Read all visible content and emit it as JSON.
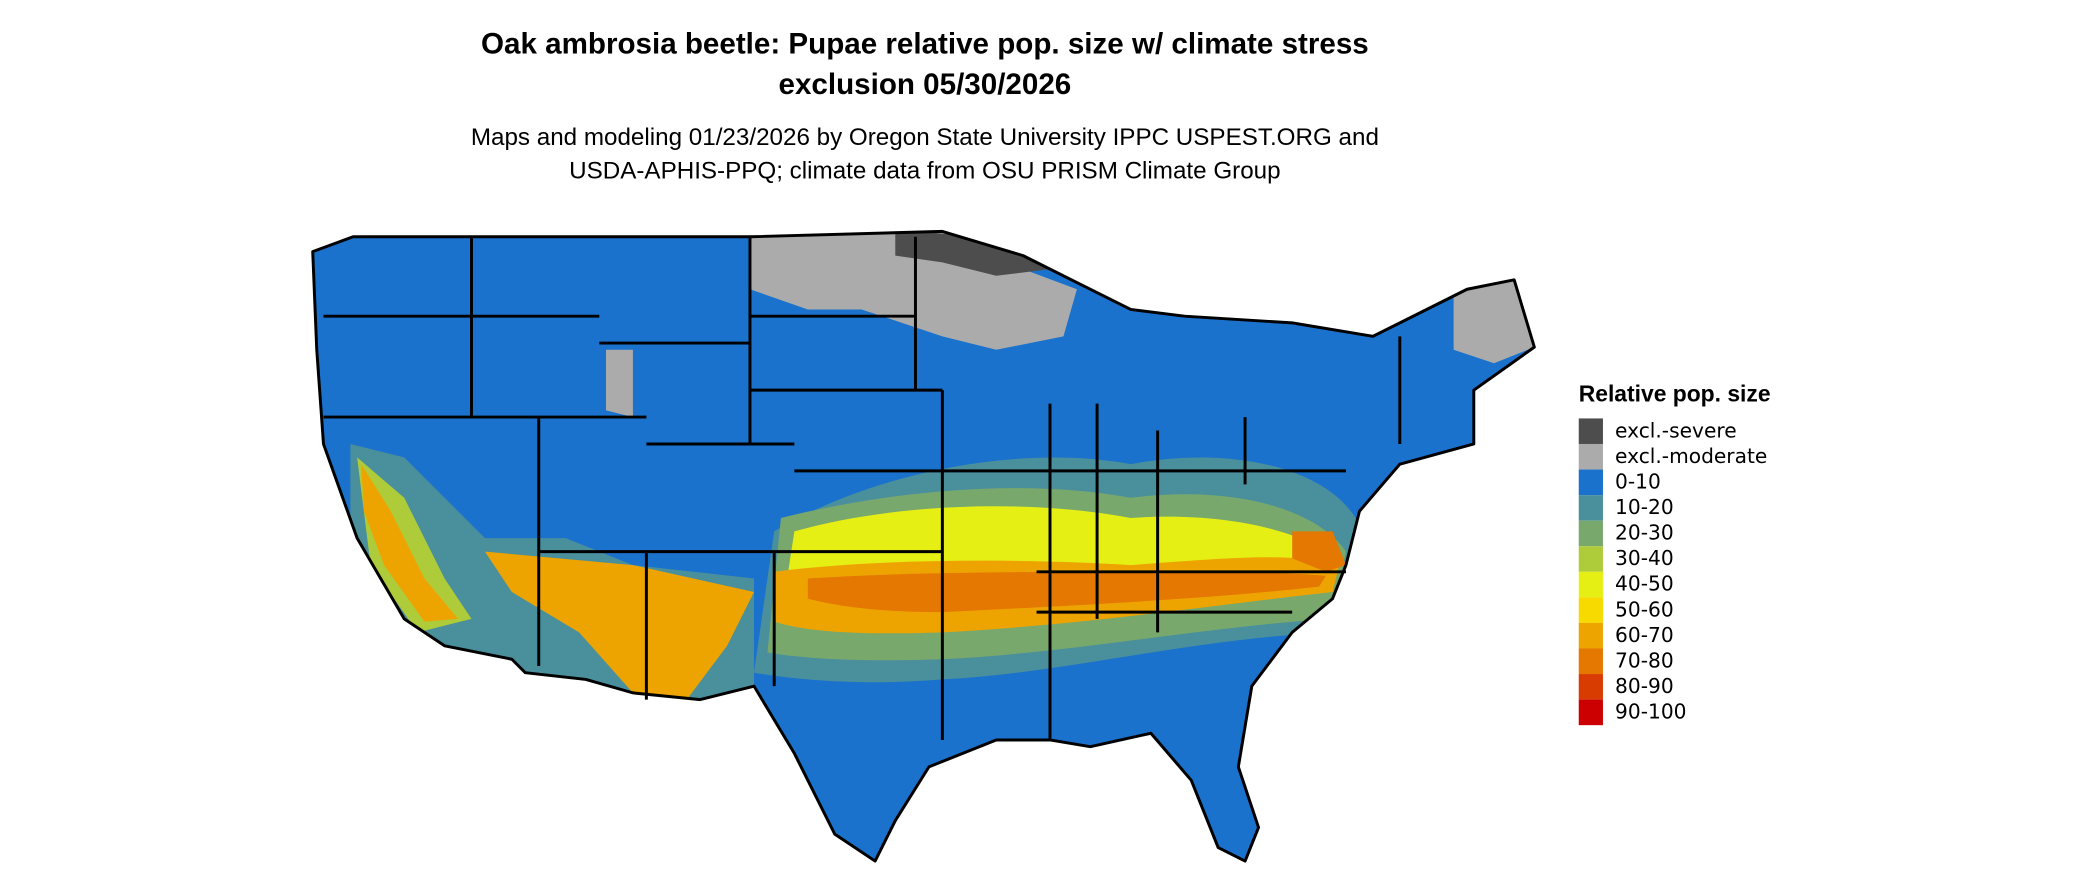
{
  "title_lines": [
    "Oak ambrosia beetle: Pupae relative pop. size w/ climate stress",
    "exclusion 05/30/2026"
  ],
  "subtitle_lines": [
    "Maps and modeling 01/23/2026 by Oregon State University IPPC USPEST.ORG and",
    "USDA-APHIS-PPQ; climate data from OSU PRISM Climate Group"
  ],
  "legend": {
    "title": "Relative pop. size",
    "items": [
      {
        "label": "excl.-severe",
        "color": "#4d4d4d"
      },
      {
        "label": "excl.-moderate",
        "color": "#ababab"
      },
      {
        "label": "0-10",
        "color": "#1a72cc"
      },
      {
        "label": "10-20",
        "color": "#4a8f9c"
      },
      {
        "label": "20-30",
        "color": "#79a86c"
      },
      {
        "label": "30-40",
        "color": "#aecb3a"
      },
      {
        "label": "40-50",
        "color": "#e6ef14"
      },
      {
        "label": "50-60",
        "color": "#f6da00"
      },
      {
        "label": "60-70",
        "color": "#eea400"
      },
      {
        "label": "70-80",
        "color": "#e47800"
      },
      {
        "label": "80-90",
        "color": "#d83c00"
      },
      {
        "label": "90-100",
        "color": "#cc0000"
      }
    ]
  }
}
